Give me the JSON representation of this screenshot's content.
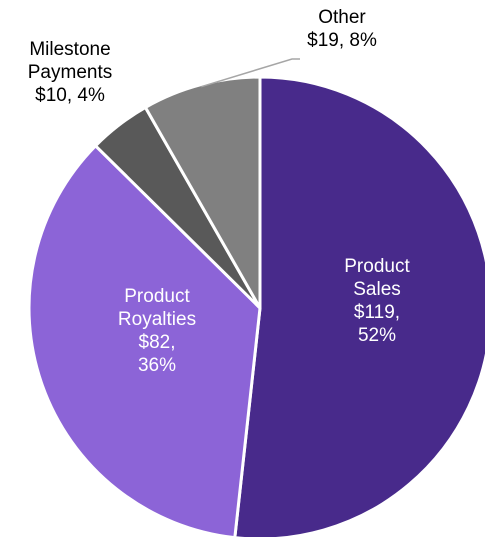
{
  "chart_data": {
    "type": "pie",
    "title": "",
    "slices": [
      {
        "category": "Product Sales",
        "value": 119,
        "percent": 52,
        "color": "#482a8b",
        "label_lines": [
          "Product",
          "Sales",
          "$119,",
          "52%"
        ],
        "label_color": "#ffffff"
      },
      {
        "category": "Product Royalties",
        "value": 82,
        "percent": 36,
        "color": "#8c64d7",
        "label_lines": [
          "Product",
          "Royalties",
          "$82,",
          "36%"
        ],
        "label_color": "#ffffff"
      },
      {
        "category": "Milestone Payments",
        "value": 10,
        "percent": 4,
        "color": "#595959",
        "label_lines": [
          "Milestone",
          "Payments",
          "$10, 4%"
        ],
        "label_color": "#000000"
      },
      {
        "category": "Other",
        "value": 19,
        "percent": 8,
        "color": "#808080",
        "label_lines": [
          "Other",
          "$19, 8%"
        ],
        "label_color": "#000000"
      }
    ],
    "slice_border_color": "#ffffff",
    "leader_line_color": "#a6a6a6"
  }
}
